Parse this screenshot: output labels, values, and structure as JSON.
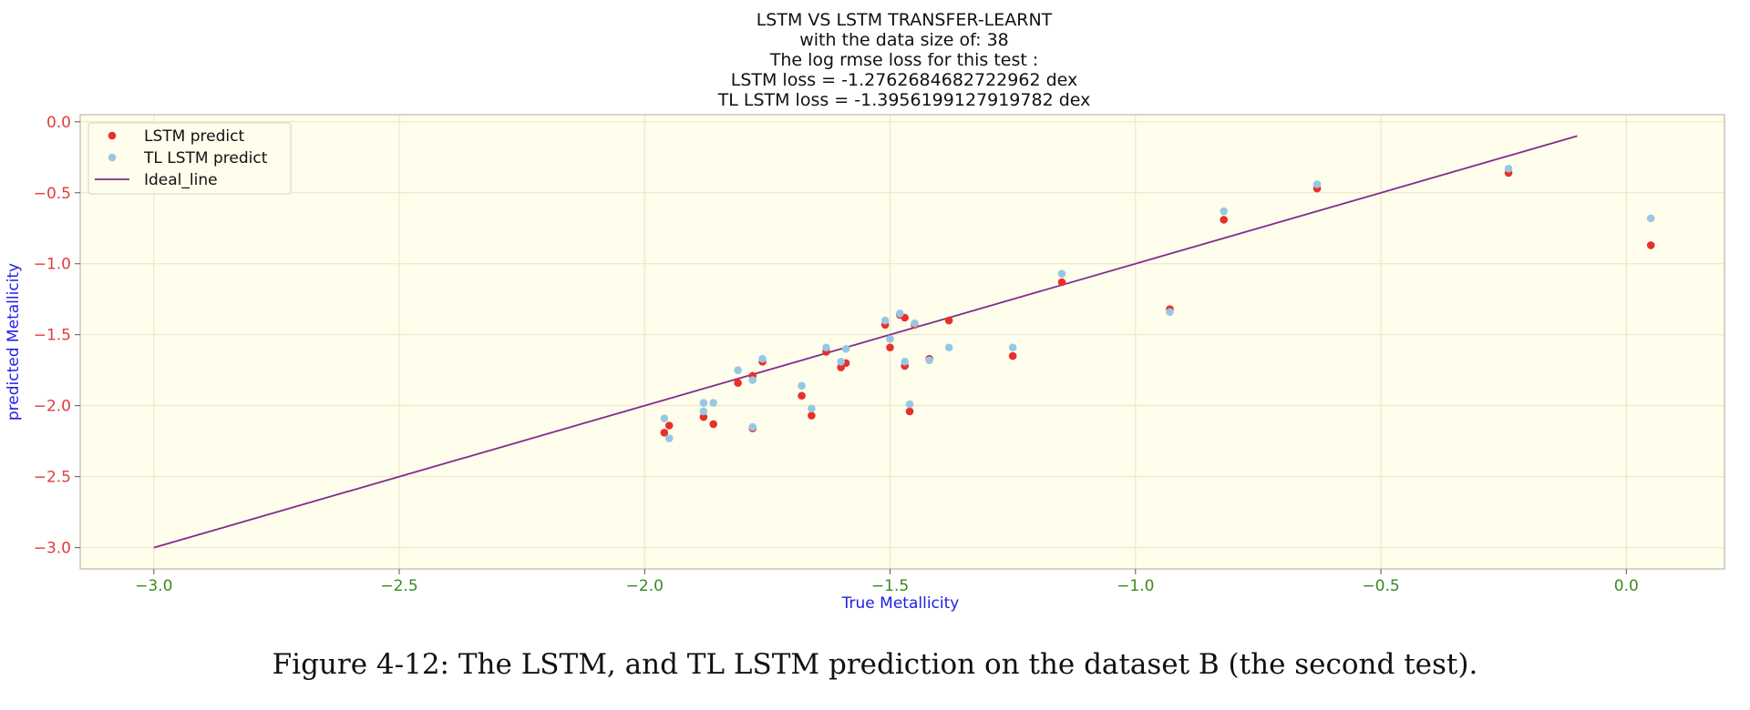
{
  "caption": "Figure 4-12: The LSTM, and TL LSTM prediction on the dataset B (the second test).",
  "chart_data": {
    "type": "scatter",
    "title_lines": [
      "LSTM VS LSTM TRANSFER-LEARNT",
      "with the data size of: 38",
      "The log rmse loss for this test :",
      "LSTM loss = -1.2762684682722962 dex",
      "TL LSTM loss = -1.3956199127919782 dex"
    ],
    "xlabel": "True Metallicity",
    "ylabel": "predicted Metallicity",
    "xlim": [
      -3.15,
      0.2
    ],
    "ylim": [
      -3.15,
      0.05
    ],
    "xticks": [
      -3.0,
      -2.5,
      -2.0,
      -1.5,
      -1.0,
      -0.5,
      0.0
    ],
    "xtick_labels": [
      "−3.0",
      "−2.5",
      "−2.0",
      "−1.5",
      "−1.0",
      "−0.5",
      "0.0"
    ],
    "yticks": [
      0.0,
      -0.5,
      -1.0,
      -1.5,
      -2.0,
      -2.5,
      -3.0
    ],
    "ytick_labels": [
      "0.0",
      "−0.5",
      "−1.0",
      "−1.5",
      "−2.0",
      "−2.5",
      "−3.0"
    ],
    "grid": true,
    "legend_position": "upper-left",
    "colors": {
      "plot_bg": "#fffdeb",
      "grid": "#ede3c4",
      "lstm": "#e8302b",
      "tl_lstm": "#96c8e6",
      "ideal": "#7e2d8e",
      "xtick": "#3a8a1e",
      "ytick": "#e33b3b"
    },
    "series": [
      {
        "name": "LSTM predict",
        "marker": "dot",
        "points": [
          [
            -1.96,
            -2.19
          ],
          [
            -1.95,
            -2.14
          ],
          [
            -1.88,
            -2.08
          ],
          [
            -1.86,
            -2.13
          ],
          [
            -1.81,
            -1.84
          ],
          [
            -1.78,
            -1.79
          ],
          [
            -1.78,
            -2.16
          ],
          [
            -1.76,
            -1.69
          ],
          [
            -1.68,
            -1.93
          ],
          [
            -1.66,
            -2.07
          ],
          [
            -1.63,
            -1.62
          ],
          [
            -1.6,
            -1.73
          ],
          [
            -1.59,
            -1.7
          ],
          [
            -1.51,
            -1.43
          ],
          [
            -1.5,
            -1.59
          ],
          [
            -1.48,
            -1.36
          ],
          [
            -1.47,
            -1.38
          ],
          [
            -1.47,
            -1.72
          ],
          [
            -1.46,
            -2.04
          ],
          [
            -1.45,
            -1.43
          ],
          [
            -1.42,
            -1.67
          ],
          [
            -1.38,
            -1.4
          ],
          [
            -1.25,
            -1.65
          ],
          [
            -1.15,
            -1.13
          ],
          [
            -0.93,
            -1.32
          ],
          [
            -0.82,
            -0.69
          ],
          [
            -0.63,
            -0.47
          ],
          [
            -0.24,
            -0.36
          ],
          [
            0.05,
            -0.87
          ]
        ]
      },
      {
        "name": "TL LSTM predict",
        "marker": "dot",
        "points": [
          [
            -1.96,
            -2.09
          ],
          [
            -1.95,
            -2.23
          ],
          [
            -1.88,
            -1.98
          ],
          [
            -1.88,
            -2.04
          ],
          [
            -1.86,
            -1.98
          ],
          [
            -1.81,
            -1.75
          ],
          [
            -1.78,
            -1.82
          ],
          [
            -1.78,
            -2.15
          ],
          [
            -1.76,
            -1.67
          ],
          [
            -1.68,
            -1.86
          ],
          [
            -1.66,
            -2.02
          ],
          [
            -1.63,
            -1.59
          ],
          [
            -1.6,
            -1.69
          ],
          [
            -1.59,
            -1.6
          ],
          [
            -1.51,
            -1.4
          ],
          [
            -1.5,
            -1.53
          ],
          [
            -1.48,
            -1.35
          ],
          [
            -1.47,
            -1.69
          ],
          [
            -1.46,
            -1.99
          ],
          [
            -1.45,
            -1.42
          ],
          [
            -1.42,
            -1.68
          ],
          [
            -1.38,
            -1.59
          ],
          [
            -1.25,
            -1.59
          ],
          [
            -1.15,
            -1.07
          ],
          [
            -0.93,
            -1.34
          ],
          [
            -0.82,
            -0.63
          ],
          [
            -0.63,
            -0.44
          ],
          [
            -0.24,
            -0.33
          ],
          [
            0.05,
            -0.68
          ]
        ]
      },
      {
        "name": "Ideal_line",
        "marker": "line",
        "points": [
          [
            -3.0,
            -3.0
          ],
          [
            -0.1,
            -0.1
          ]
        ]
      }
    ]
  }
}
